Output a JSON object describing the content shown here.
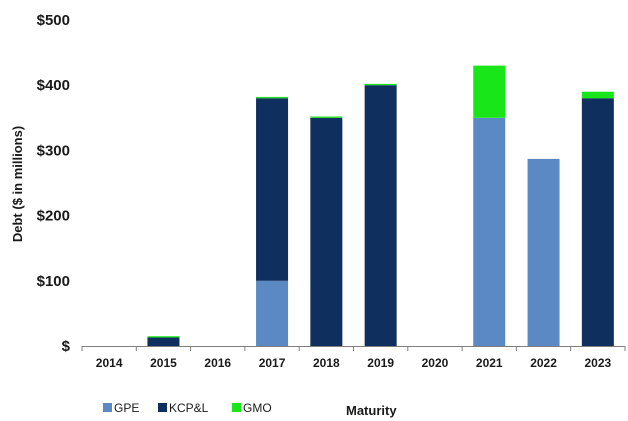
{
  "chart_data": {
    "type": "bar",
    "stacked": true,
    "categories": [
      "2014",
      "2015",
      "2016",
      "2017",
      "2018",
      "2019",
      "2020",
      "2021",
      "2022",
      "2023"
    ],
    "series": [
      {
        "name": "GPE",
        "color": "#5b89c3",
        "values": [
          0,
          0,
          0,
          100,
          0,
          0,
          0,
          350,
          287,
          0
        ]
      },
      {
        "name": "KCP&L",
        "color": "#0f2f5e",
        "values": [
          0,
          13,
          0,
          280,
          350,
          400,
          0,
          0,
          0,
          380
        ]
      },
      {
        "name": "GMO",
        "color": "#19e619",
        "values": [
          0,
          2,
          0,
          2,
          2,
          2,
          0,
          80,
          0,
          10
        ]
      }
    ],
    "ylabel": "Debt ($ in millions)",
    "xlabel": "Maturity",
    "ylim": [
      0,
      500
    ],
    "yticks": [
      0,
      100,
      200,
      300,
      400,
      500
    ],
    "ytick_labels": [
      "$",
      "$100",
      "$200",
      "$300",
      "$400",
      "$500"
    ],
    "grid": false,
    "legend_position": "bottom-left"
  }
}
